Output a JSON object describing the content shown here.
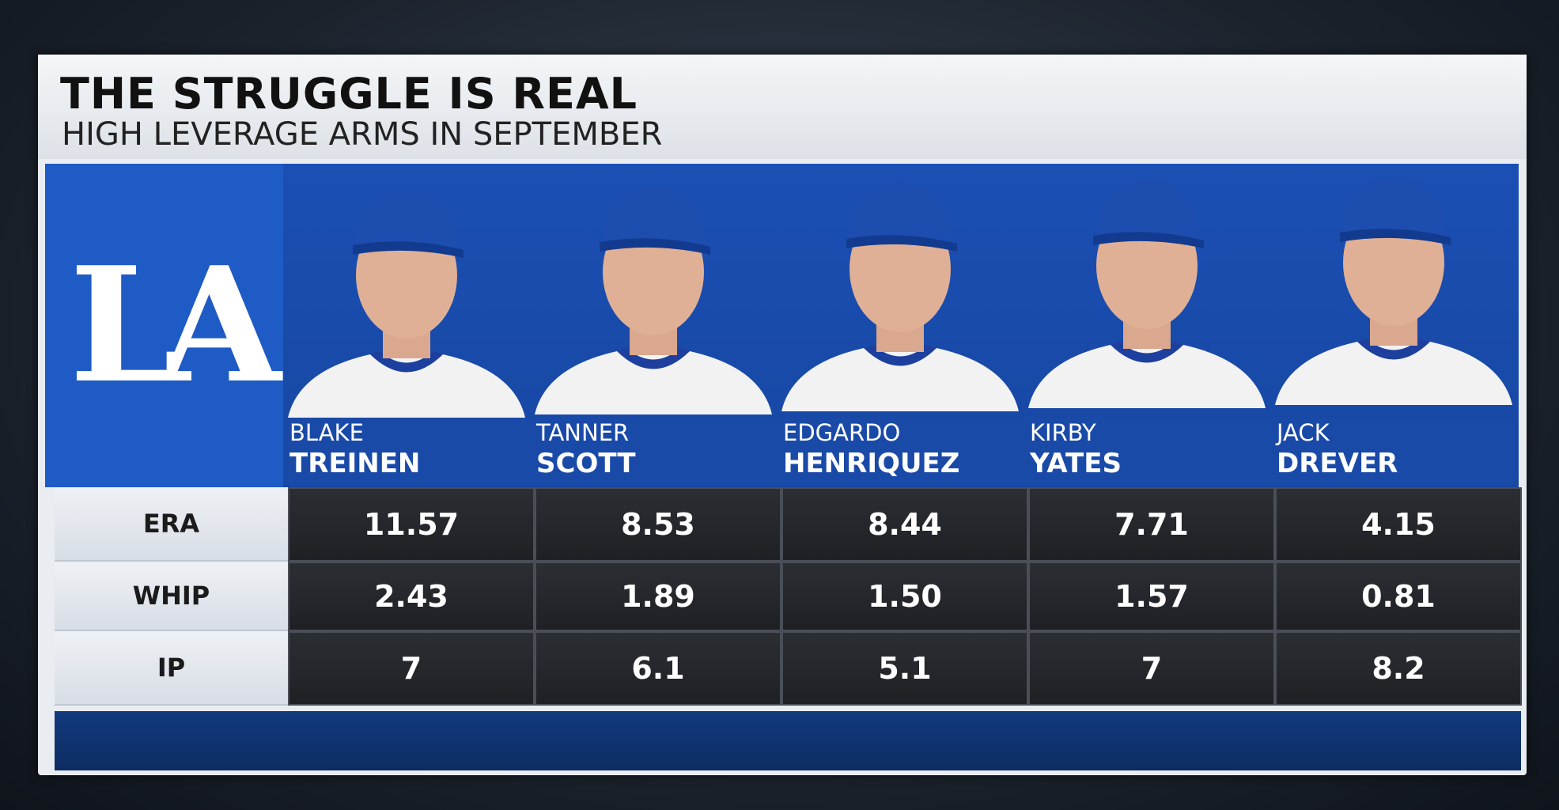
{
  "header": {
    "title": "THE STRUGGLE IS REAL",
    "subtitle": "HIGH LEVERAGE ARMS IN SEPTEMBER"
  },
  "team_logo": "LA",
  "players": [
    {
      "first": "BLAKE",
      "last": "TREINEN"
    },
    {
      "first": "TANNER",
      "last": "SCOTT"
    },
    {
      "first": "EDGARDO",
      "last": "HENRIQUEZ"
    },
    {
      "first": "KIRBY",
      "last": "YATES"
    },
    {
      "first": "JACK",
      "last": "DREVER"
    }
  ],
  "table": {
    "rows": [
      {
        "label": "ERA",
        "cells": [
          "11.57",
          "8.53",
          "8.44",
          "7.71",
          "4.15"
        ]
      },
      {
        "label": "WHIP",
        "cells": [
          "2.43",
          "1.89",
          "1.50",
          "1.57",
          "0.81"
        ]
      },
      {
        "label": "IP",
        "cells": [
          "7",
          "6.1",
          "5.1",
          "7",
          "8.2"
        ]
      }
    ]
  }
}
